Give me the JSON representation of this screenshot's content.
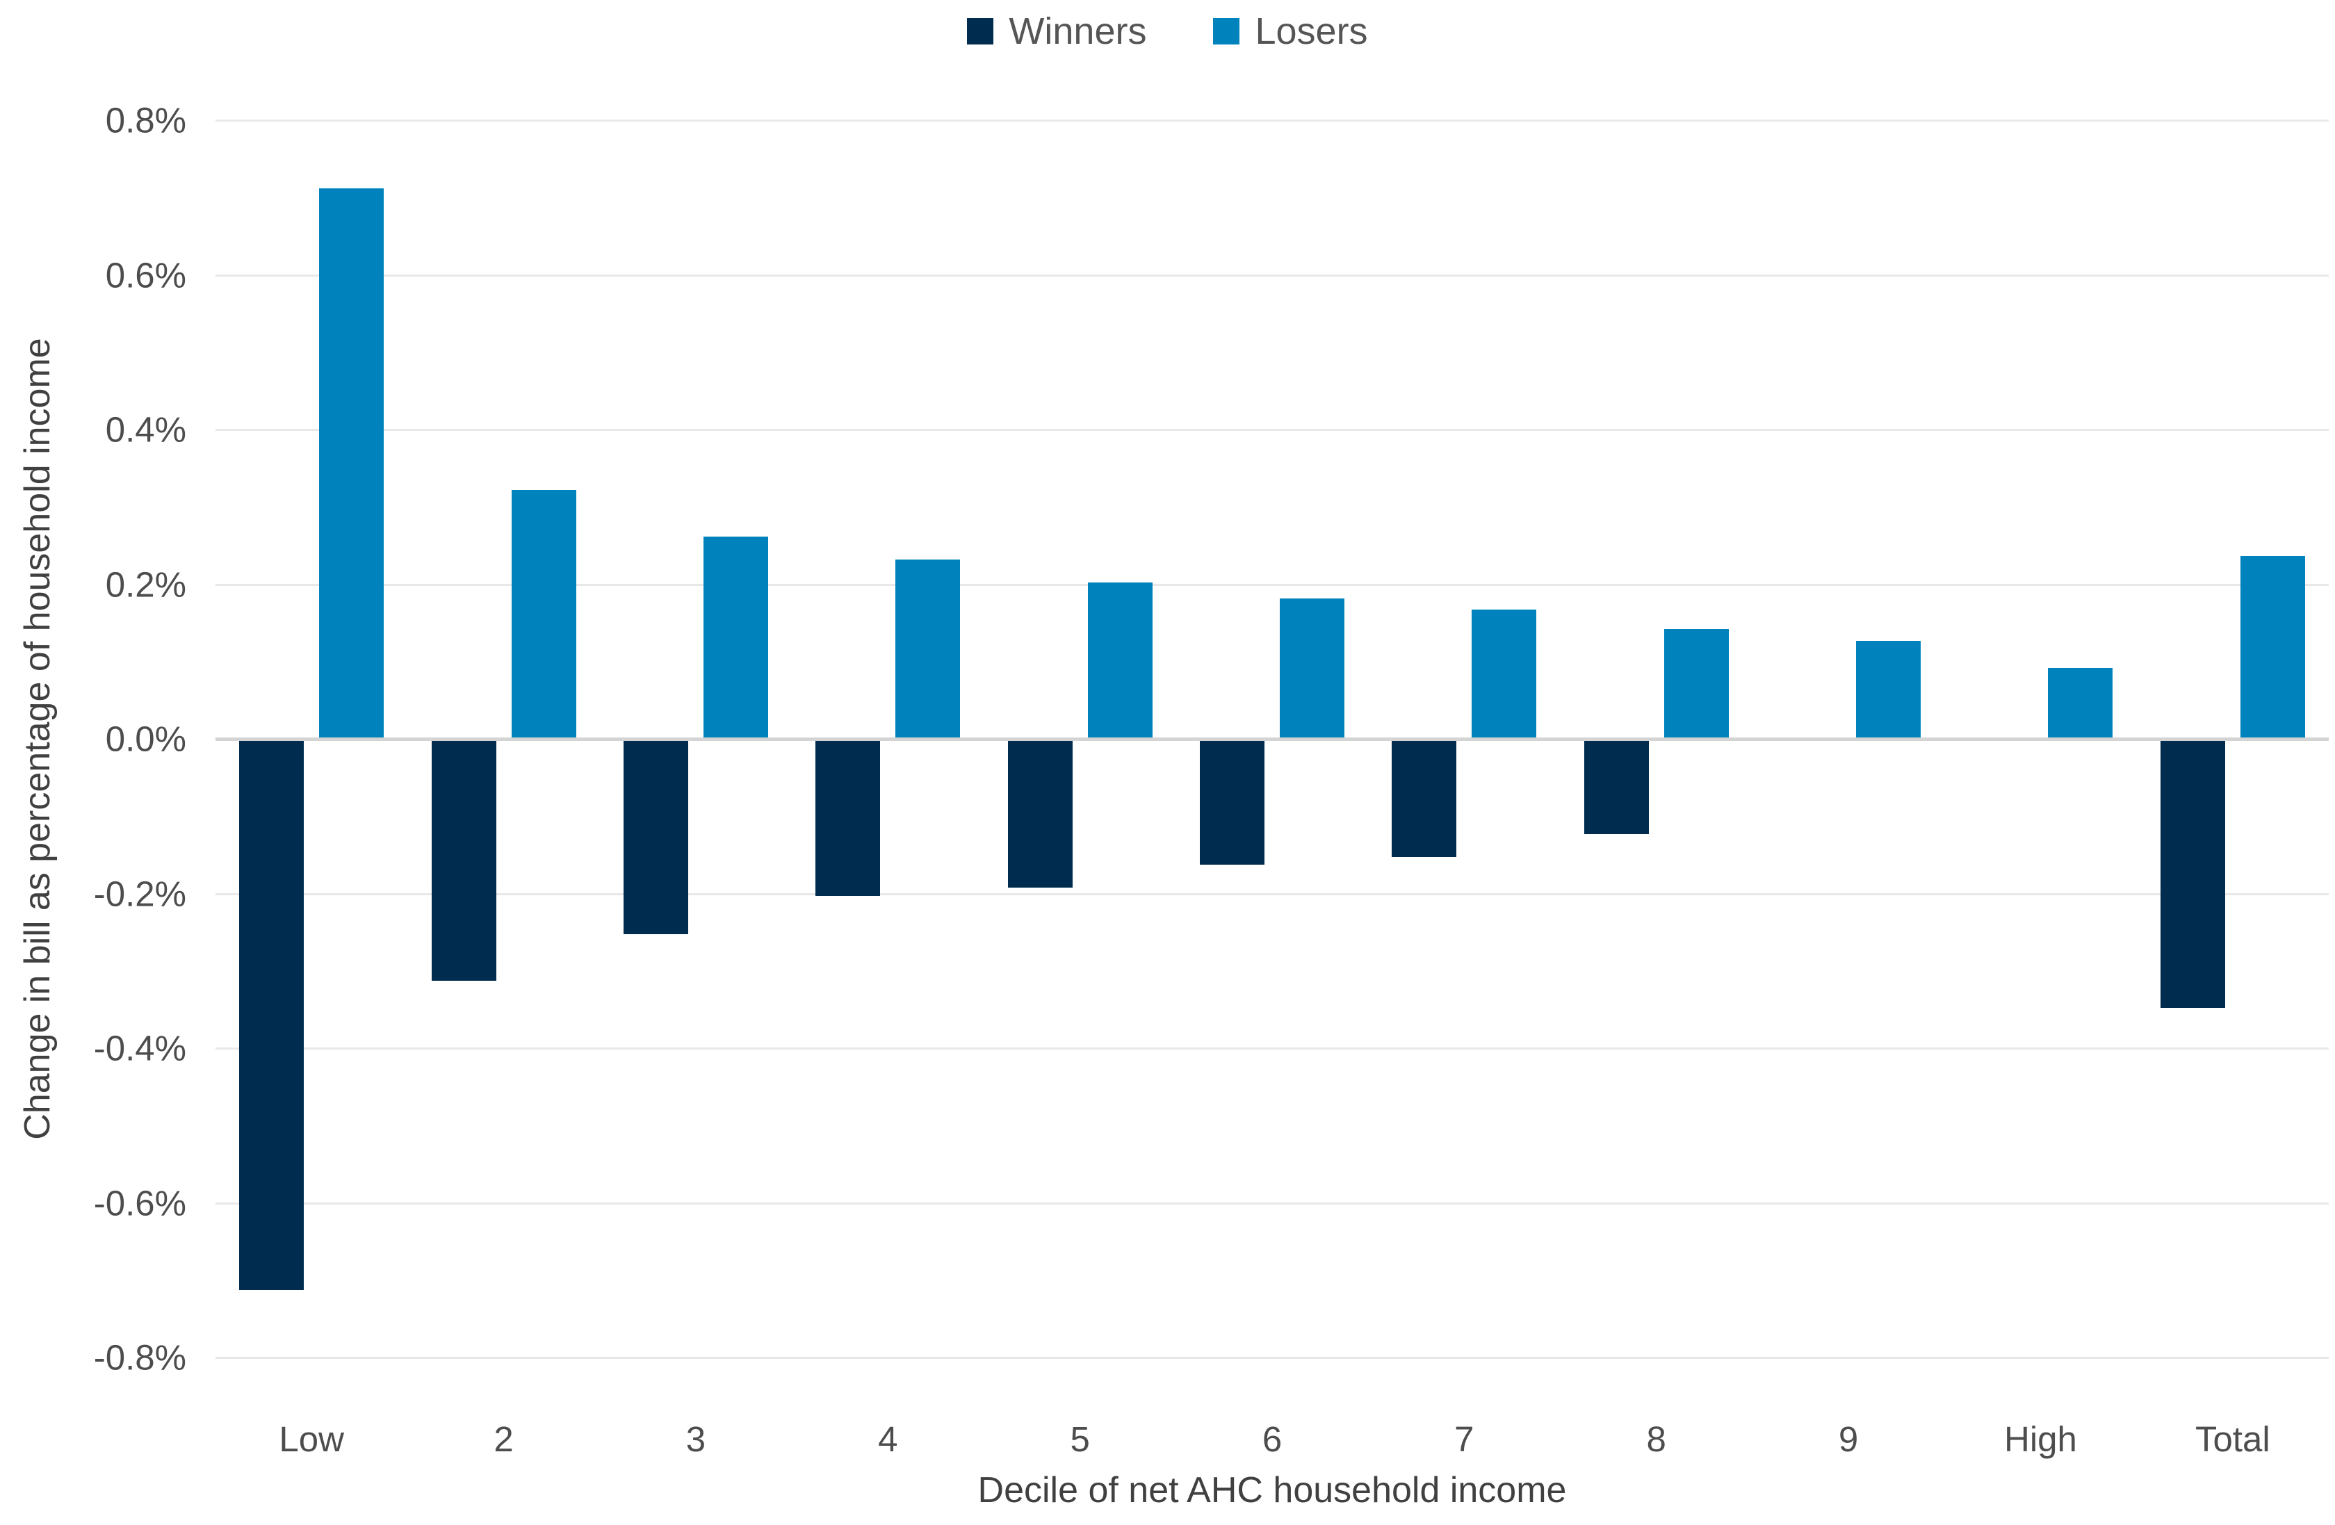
{
  "chart_data": {
    "type": "bar",
    "categories": [
      "Low",
      "2",
      "3",
      "4",
      "5",
      "6",
      "7",
      "8",
      "9",
      "High",
      "Total"
    ],
    "series": [
      {
        "name": "Winners",
        "color": "#002d4f",
        "values": [
          -0.71,
          -0.31,
          -0.25,
          -0.2,
          -0.19,
          -0.16,
          -0.15,
          -0.12,
          null,
          null,
          -0.345
        ]
      },
      {
        "name": "Losers",
        "color": "#0083bc",
        "values": [
          0.71,
          0.32,
          0.26,
          0.23,
          0.2,
          0.18,
          0.165,
          0.14,
          0.125,
          0.09,
          0.235
        ]
      }
    ],
    "title": "",
    "xlabel": "Decile of net AHC household income",
    "ylabel": "Change in bill as percentage of household income",
    "y_ticks": [
      "0.8%",
      "0.6%",
      "0.4%",
      "0.2%",
      "0.0%",
      "-0.2%",
      "-0.4%",
      "-0.6%",
      "-0.8%"
    ],
    "ylim": [
      -0.8,
      0.8
    ],
    "grid": "horizontal",
    "legend_position": "top",
    "colors": {
      "winners": "#002d4f",
      "losers": "#0083bc",
      "gridline": "#e8e8e8",
      "zero_line": "#d4d4d4",
      "text": "#4d4d4d"
    }
  }
}
